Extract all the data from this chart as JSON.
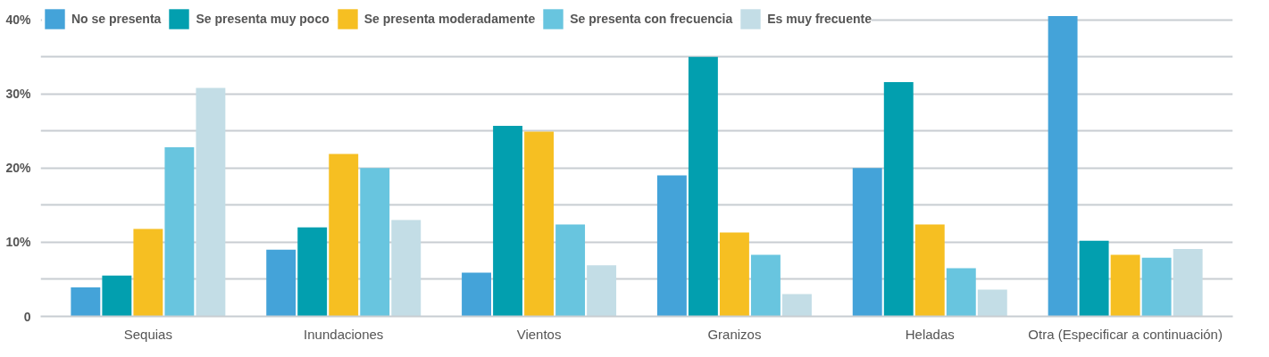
{
  "chart_data": {
    "type": "bar",
    "categories": [
      "Sequias",
      "Inundaciones",
      "Vientos",
      "Granizos",
      "Heladas",
      "Otra (Especificar a continuación)"
    ],
    "series": [
      {
        "name": "No se presenta",
        "color": "#44a3d9",
        "values": [
          3.9,
          9,
          5.9,
          19,
          20,
          40.5
        ]
      },
      {
        "name": "Se presenta muy poco",
        "color": "#029faf",
        "values": [
          5.5,
          12,
          25.7,
          35,
          31.6,
          10.2
        ]
      },
      {
        "name": "Se presenta moderadamente",
        "color": "#f6bf22",
        "values": [
          11.8,
          21.9,
          24.9,
          11.3,
          12.4,
          8.3
        ]
      },
      {
        "name": "Se presenta con frecuencia",
        "color": "#68c5df",
        "values": [
          22.8,
          20,
          12.4,
          8.3,
          6.5,
          7.9
        ]
      },
      {
        "name": "Es muy frecuente",
        "color": "#c3dde6",
        "values": [
          30.8,
          13,
          6.9,
          3,
          3.6,
          9.1
        ]
      }
    ],
    "ylim": [
      0,
      42
    ],
    "yticks": [
      0,
      {
        "value": 5,
        "label": null
      },
      {
        "value": 10,
        "label": "10%"
      },
      {
        "value": 15,
        "label": null
      },
      {
        "value": 20,
        "label": "20%"
      },
      {
        "value": 25,
        "label": null
      },
      {
        "value": 30,
        "label": "30%"
      },
      {
        "value": 35,
        "label": null
      },
      {
        "value": 40,
        "label": "40%"
      }
    ],
    "grid": "y",
    "legend": "top left"
  }
}
